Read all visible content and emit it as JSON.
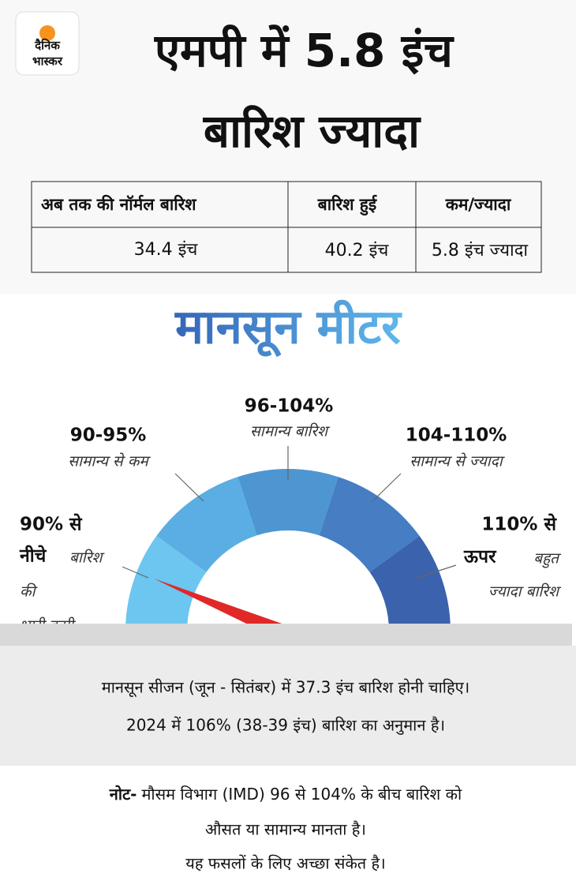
{
  "logo": {
    "line1": "दैनिक",
    "line2": "भास्कर"
  },
  "header": {
    "title_lines": [
      "एमपी में 5.8 इंच",
      "बारिश ज्यादा"
    ]
  },
  "table": {
    "headers": [
      "अब तक की नॉर्मल बारिश",
      "बारिश हुई",
      "कम/ज्यादा"
    ],
    "rows": [
      [
        "34.4 इंच",
        "40.2 इंच",
        "5.8 इंच ज्यादा"
      ]
    ]
  },
  "meter": {
    "title": "मानसून मीटर",
    "segments": [
      {
        "range_lines": [
          "90% से",
          "नीचे"
        ],
        "desc_lines": [
          "बारिश",
          "की",
          "भारी कमी"
        ]
      },
      {
        "range_lines": [
          "90-95%"
        ],
        "desc_lines": [
          "सामान्य से कम"
        ]
      },
      {
        "range_lines": [
          "96-104%"
        ],
        "desc_lines": [
          "सामान्य बारिश"
        ]
      },
      {
        "range_lines": [
          "104-110%"
        ],
        "desc_lines": [
          "सामान्य से ज्यादा"
        ]
      },
      {
        "range_lines": [
          "110% से",
          "ऊपर"
        ],
        "desc_lines": [
          "बहुत",
          "ज्यादा बारिश"
        ]
      }
    ]
  },
  "info": {
    "lines": [
      "मानसून सीजन (जून - सितंबर) में 37.3 इंच बारिश होनी चाहिए।",
      "2024 में 106% (38-39 इंच) बारिश का अनुमान है।"
    ]
  },
  "note": {
    "label": "नोट-",
    "lines": [
      "मौसम विभाग (IMD) 96 से 104% के बीच बारिश को",
      "औसत या सामान्य मानता है।",
      "यह फसलों के लिए अच्छा संकेत है।"
    ]
  }
}
